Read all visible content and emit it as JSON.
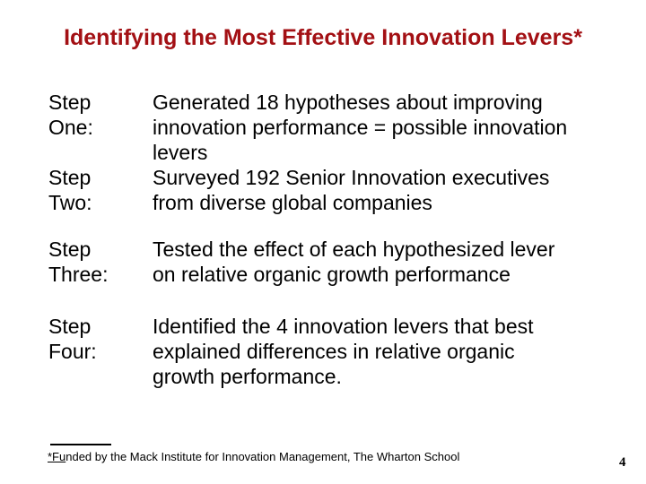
{
  "slide": {
    "title": "Identifying the Most Effective Innovation Levers*",
    "steps": [
      {
        "label": [
          "Step",
          "One:"
        ],
        "desc": [
          "Generated 18 hypotheses about improving",
          "innovation performance = possible innovation",
          "levers"
        ]
      },
      {
        "label": [
          "Step",
          "Two:"
        ],
        "desc": [
          "Surveyed 192 Senior Innovation executives",
          "from diverse global companies"
        ]
      },
      {
        "label": [
          "Step",
          "Three:"
        ],
        "desc": [
          "Tested the effect of each hypothesized lever",
          "on relative organic growth performance"
        ]
      },
      {
        "label": [
          "Step",
          "Four:"
        ],
        "desc": [
          "Identified the 4 innovation levers that best",
          "explained differences in relative organic",
          "growth performance."
        ]
      }
    ],
    "footnote": {
      "underlined": "*Fu",
      "rest": "nded by the Mack Institute for Innovation Management, The Wharton School"
    },
    "page_number": "4"
  },
  "colors": {
    "title_red": "#a31014",
    "body_text": "#000000",
    "background": "#ffffff"
  }
}
